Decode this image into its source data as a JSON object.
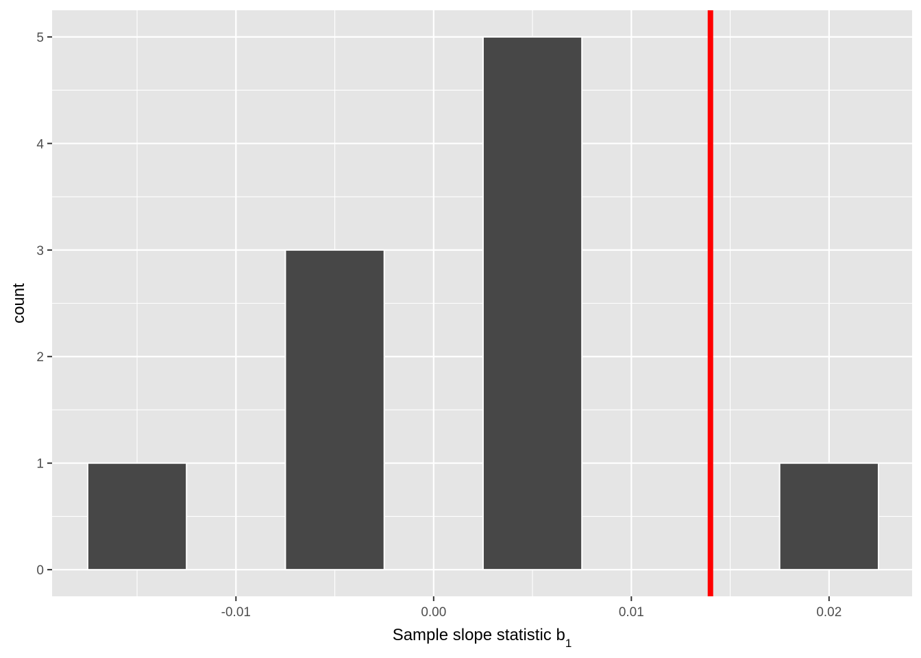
{
  "chart_data": {
    "type": "bar",
    "title": "",
    "xlabel": "Sample slope statistic b",
    "xlabel_subscript": "1",
    "ylabel": "count",
    "bin_width": 0.005,
    "bins": [
      {
        "center": -0.015,
        "count": 1
      },
      {
        "center": -0.005,
        "count": 3
      },
      {
        "center": 0.005,
        "count": 5
      },
      {
        "center": 0.02,
        "count": 1
      }
    ],
    "xlim": [
      -0.0193,
      0.0242
    ],
    "ylim": [
      -0.25,
      5.25
    ],
    "x_ticks": [
      -0.01,
      0.0,
      0.01,
      0.02
    ],
    "x_tick_labels": [
      "-0.01",
      "0.00",
      "0.01",
      "0.02"
    ],
    "y_ticks": [
      0,
      1,
      2,
      3,
      4,
      5
    ],
    "y_tick_labels": [
      "0",
      "1",
      "2",
      "3",
      "4",
      "5"
    ],
    "reference_line": {
      "x": 0.014,
      "color": "#ff0000"
    },
    "bar_color": "#474747",
    "bar_outline": "#ffffff",
    "panel_background": "#e5e5e5",
    "grid": true,
    "legend": "none"
  }
}
